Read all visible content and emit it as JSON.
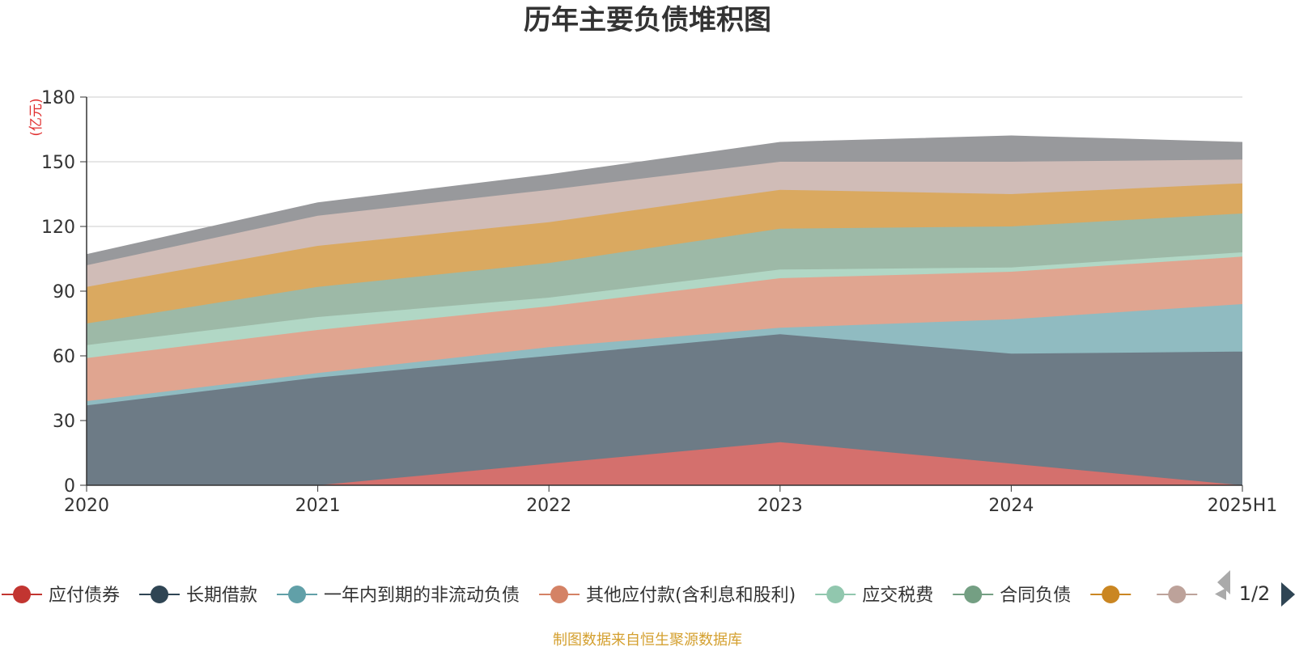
{
  "chart_data": {
    "type": "area",
    "stacked": true,
    "title": "历年主要负债堆积图",
    "unit": "(亿元)",
    "categories": [
      "2020",
      "2021",
      "2022",
      "2023",
      "2024",
      "2025H1"
    ],
    "ylim": [
      0,
      180
    ],
    "yticks": [
      0,
      30,
      60,
      90,
      120,
      150,
      180
    ],
    "grid": true,
    "series": [
      {
        "name": "应付债券",
        "color": "#c23531",
        "fill": "#d4706d",
        "values": [
          0,
          0,
          10,
          20,
          10,
          0
        ]
      },
      {
        "name": "长期借款",
        "color": "#2f4554",
        "fill": "#6d7b86",
        "values": [
          37,
          50,
          50,
          50,
          51,
          62
        ]
      },
      {
        "name": "一年内到期的非流动负债",
        "color": "#61a0a8",
        "fill": "#90bbc1",
        "values": [
          2,
          2,
          4,
          3,
          16,
          22
        ]
      },
      {
        "name": "其他应付款(含利息和股利)",
        "color": "#d48265",
        "fill": "#e0a590",
        "values": [
          20,
          20,
          19,
          23,
          22,
          22
        ]
      },
      {
        "name": "应交税费",
        "color": "#91c7ae",
        "fill": "#b1d7c5",
        "values": [
          6,
          6,
          4,
          4,
          2,
          2
        ]
      },
      {
        "name": "合同负债",
        "color": "#749f83",
        "fill": "#9db9a7",
        "values": [
          10,
          14,
          16,
          19,
          19,
          18
        ]
      },
      {
        "name": "",
        "color": "#ca8622",
        "fill": "#daa960",
        "values": [
          17,
          19,
          19,
          18,
          15,
          14
        ]
      },
      {
        "name": "",
        "color": "#bda29a",
        "fill": "#d0bcb7",
        "values": [
          10,
          14,
          15,
          13,
          15,
          11
        ]
      },
      {
        "name": "",
        "color": "#6e7074",
        "fill": "#98999c",
        "values": [
          5,
          6,
          7,
          9,
          12,
          8
        ]
      }
    ],
    "legend": {
      "placement": "bottom",
      "page": "1/2"
    }
  },
  "source": "制图数据来自恒生聚源数据库"
}
